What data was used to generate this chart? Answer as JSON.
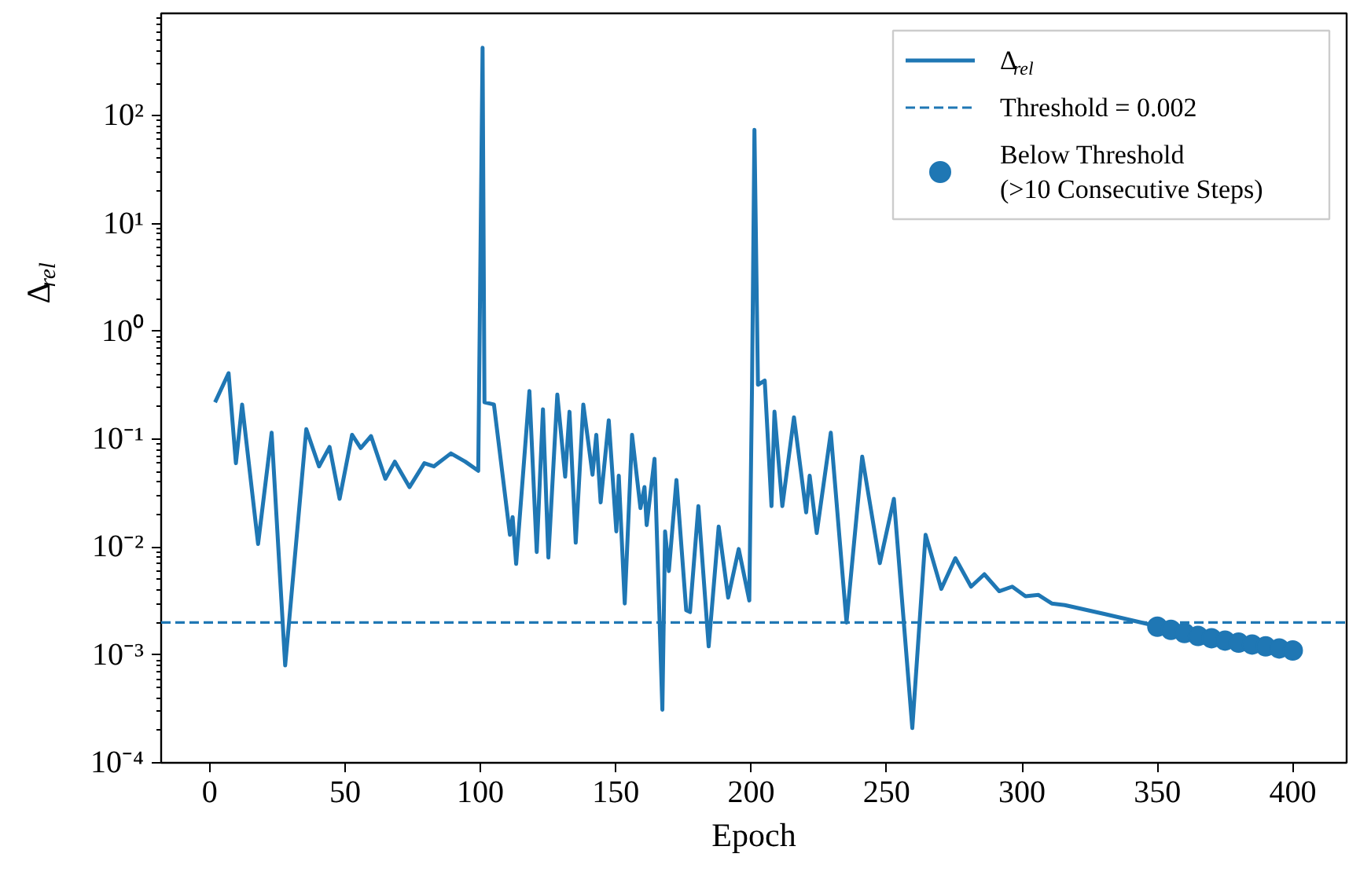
{
  "chart_data": {
    "type": "line",
    "xlabel": "Epoch",
    "ylabel": "Δ$_{rel}$",
    "log": "y",
    "legend": "top right",
    "xlim": [
      -17.9,
      419.9
    ],
    "ylim": [
      0.0001,
      890
    ],
    "xticks": [
      0,
      50,
      100,
      150,
      200,
      250,
      300,
      350,
      400
    ],
    "yticks": [
      {
        "value": 0.0001,
        "label": "10⁻⁴"
      },
      {
        "value": 0.001,
        "label": "10⁻³"
      },
      {
        "value": 0.01,
        "label": "10⁻²"
      },
      {
        "value": 0.1,
        "label": "10⁻¹"
      },
      {
        "value": 1,
        "label": "10⁰"
      },
      {
        "value": 10,
        "label": "10¹"
      },
      {
        "value": 100,
        "label": "10²"
      }
    ],
    "ref_lines": [
      {
        "axis": "y",
        "value": 0.002,
        "label": "Threshold = 0.002",
        "color": "#1f77b4",
        "line_style": "dashed"
      }
    ],
    "series": [
      {
        "name": "Δ$_{rel}$",
        "type": "line",
        "color": "#1f77b4",
        "x": [
          2,
          7,
          9.7,
          12,
          17.9,
          22.9,
          27.9,
          35.7,
          40.4,
          44.3,
          48,
          52.6,
          55.8,
          59.6,
          64.9,
          68.4,
          73.8,
          79.3,
          82.8,
          89.1,
          94.4,
          99.2,
          100.8,
          101.5,
          105,
          110.9,
          111.9,
          113.2,
          118.1,
          120.8,
          123.1,
          125.1,
          128.4,
          131.3,
          132.9,
          135.2,
          138,
          141.4,
          142.8,
          144.4,
          147.4,
          150.2,
          151.1,
          153.3,
          156,
          159.1,
          160.6,
          161.4,
          164.3,
          167.2,
          168.2,
          169.6,
          172.4,
          176,
          177.4,
          180.5,
          184.3,
          188,
          191.5,
          195.4,
          199.3,
          200.3,
          201.2,
          202.5,
          205,
          207.5,
          208.6,
          211.5,
          215.8,
          220.3,
          221.6,
          224.2,
          229.4,
          235.2,
          241,
          247.5,
          252.7,
          259.5,
          264.4,
          270.2,
          275.4,
          281.2,
          286.1,
          291.6,
          296.4,
          301.3,
          306.1,
          311,
          315.8,
          330.4,
          347.9,
          349,
          375,
          400
        ],
        "values": [
          0.22,
          0.41,
          0.06,
          0.21,
          0.0107,
          0.115,
          0.0008,
          0.124,
          0.056,
          0.085,
          0.028,
          0.11,
          0.083,
          0.107,
          0.043,
          0.062,
          0.036,
          0.06,
          0.056,
          0.074,
          0.062,
          0.051,
          427,
          0.22,
          0.21,
          0.013,
          0.019,
          0.007,
          0.28,
          0.009,
          0.19,
          0.008,
          0.26,
          0.045,
          0.18,
          0.011,
          0.21,
          0.047,
          0.11,
          0.026,
          0.15,
          0.014,
          0.046,
          0.003,
          0.11,
          0.023,
          0.036,
          0.016,
          0.066,
          0.00031,
          0.014,
          0.006,
          0.042,
          0.0026,
          0.0025,
          0.024,
          0.0012,
          0.0155,
          0.0034,
          0.0096,
          0.0032,
          0.3,
          74,
          0.32,
          0.35,
          0.024,
          0.18,
          0.024,
          0.16,
          0.021,
          0.046,
          0.0135,
          0.115,
          0.002,
          0.069,
          0.0071,
          0.028,
          0.00021,
          0.013,
          0.0041,
          0.0079,
          0.0043,
          0.0056,
          0.0039,
          0.0043,
          0.0035,
          0.0036,
          0.003,
          0.0029,
          0.0024,
          0.0019,
          0.00186,
          0.00136,
          0.0011
        ]
      },
      {
        "name": "Below Threshold\n(>10 Consecutive Steps)",
        "type": "scatter",
        "marker": "circle",
        "color": "#1f77b4",
        "x": [
          350,
          355,
          360,
          365,
          370,
          375,
          380,
          385,
          390,
          395,
          400
        ],
        "values": [
          0.00183,
          0.00171,
          0.0016,
          0.0015,
          0.00143,
          0.00136,
          0.0013,
          0.00125,
          0.0012,
          0.00115,
          0.0011
        ]
      }
    ]
  }
}
